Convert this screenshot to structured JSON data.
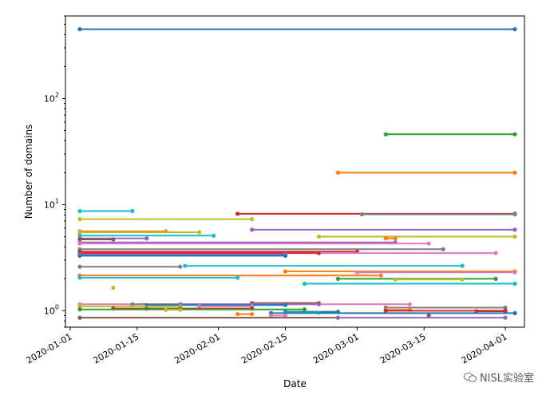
{
  "chart_data": {
    "type": "line",
    "xlabel": "Date",
    "ylabel": "Number of domains",
    "yscale": "log",
    "xlim": [
      "2019-12-31",
      "2020-04-05"
    ],
    "ylim": [
      0.7,
      600
    ],
    "x_ticks": [
      "2020-01-01",
      "2020-01-15",
      "2020-02-01",
      "2020-02-15",
      "2020-03-01",
      "2020-03-15",
      "2020-04-01"
    ],
    "y_ticks": [
      {
        "value": 1,
        "label": "10^0"
      },
      {
        "value": 10,
        "label": "10^1"
      },
      {
        "value": 100,
        "label": "10^2"
      }
    ],
    "grid": false,
    "series": [
      {
        "color": "#1f77b4",
        "points": [
          [
            "2020-01-03",
            450
          ],
          [
            "2020-04-03",
            450
          ]
        ]
      },
      {
        "color": "#2ca02c",
        "points": [
          [
            "2020-03-07",
            46
          ],
          [
            "2020-04-03",
            46
          ]
        ]
      },
      {
        "color": "#ff7f0e",
        "points": [
          [
            "2020-02-26",
            20
          ],
          [
            "2020-04-03",
            20
          ]
        ]
      },
      {
        "color": "#17becf",
        "points": [
          [
            "2020-01-03",
            8.7
          ],
          [
            "2020-01-14",
            8.7
          ]
        ]
      },
      {
        "color": "#d62728",
        "points": [
          [
            "2020-02-05",
            8.2
          ],
          [
            "2020-04-03",
            8.2
          ]
        ]
      },
      {
        "color": "#7f7f7f",
        "points": [
          [
            "2020-03-02",
            8.1
          ],
          [
            "2020-04-03",
            8.1
          ]
        ]
      },
      {
        "color": "#bcbd22",
        "points": [
          [
            "2020-01-03",
            7.3
          ],
          [
            "2020-02-08",
            7.3
          ]
        ]
      },
      {
        "color": "#9467bd",
        "points": [
          [
            "2020-02-08",
            5.8
          ],
          [
            "2020-04-03",
            5.8
          ]
        ]
      },
      {
        "color": "#ff7f0e",
        "points": [
          [
            "2020-01-03",
            5.6
          ],
          [
            "2020-01-21",
            5.6
          ]
        ]
      },
      {
        "color": "#bcbd22",
        "points": [
          [
            "2020-01-03",
            5.5
          ],
          [
            "2020-01-28",
            5.5
          ]
        ]
      },
      {
        "color": "#17becf",
        "points": [
          [
            "2020-01-03",
            5.1
          ],
          [
            "2020-01-31",
            5.1
          ]
        ]
      },
      {
        "color": "#bcbd22",
        "points": [
          [
            "2020-02-22",
            5.0
          ],
          [
            "2020-04-03",
            5.0
          ]
        ]
      },
      {
        "color": "#ff7f0e",
        "points": [
          [
            "2020-03-07",
            4.8
          ],
          [
            "2020-03-09",
            4.8
          ]
        ]
      },
      {
        "color": "#9467bd",
        "points": [
          [
            "2020-01-03",
            4.8
          ],
          [
            "2020-01-17",
            4.8
          ]
        ]
      },
      {
        "color": "#8c564b",
        "points": [
          [
            "2020-01-03",
            4.7
          ],
          [
            "2020-01-10",
            4.7
          ]
        ]
      },
      {
        "color": "#9467bd",
        "points": [
          [
            "2020-01-03",
            4.4
          ],
          [
            "2020-03-09",
            4.4
          ]
        ]
      },
      {
        "color": "#e377c2",
        "points": [
          [
            "2020-01-03",
            4.3
          ],
          [
            "2020-03-16",
            4.3
          ]
        ]
      },
      {
        "color": "#7f7f7f",
        "points": [
          [
            "2020-01-03",
            3.8
          ],
          [
            "2020-03-19",
            3.8
          ]
        ]
      },
      {
        "color": "#d62728",
        "points": [
          [
            "2020-01-03",
            3.6
          ],
          [
            "2020-03-01",
            3.6
          ]
        ]
      },
      {
        "color": "#e377c2",
        "points": [
          [
            "2020-01-03",
            3.5
          ],
          [
            "2020-03-30",
            3.5
          ]
        ]
      },
      {
        "color": "#d62728",
        "points": [
          [
            "2020-01-03",
            3.5
          ],
          [
            "2020-02-22",
            3.5
          ]
        ]
      },
      {
        "color": "#9467bd",
        "points": [
          [
            "2020-01-03",
            3.4
          ],
          [
            "2020-02-15",
            3.4
          ]
        ]
      },
      {
        "color": "#1f77b4",
        "points": [
          [
            "2020-01-03",
            3.3
          ],
          [
            "2020-02-15",
            3.3
          ]
        ]
      },
      {
        "color": "#17becf",
        "points": [
          [
            "2020-01-25",
            2.65
          ],
          [
            "2020-03-23",
            2.65
          ]
        ]
      },
      {
        "color": "#7f7f7f",
        "points": [
          [
            "2020-01-03",
            2.6
          ],
          [
            "2020-01-24",
            2.6
          ]
        ]
      },
      {
        "color": "#ff7f0e",
        "points": [
          [
            "2020-02-15",
            2.35
          ],
          [
            "2020-04-03",
            2.35
          ]
        ]
      },
      {
        "color": "#e377c2",
        "points": [
          [
            "2020-03-01",
            2.3
          ],
          [
            "2020-04-03",
            2.3
          ]
        ]
      },
      {
        "color": "#ff7f0e",
        "points": [
          [
            "2020-01-03",
            2.15
          ],
          [
            "2020-03-06",
            2.15
          ]
        ]
      },
      {
        "color": "#17becf",
        "points": [
          [
            "2020-01-03",
            2.05
          ],
          [
            "2020-02-05",
            2.05
          ]
        ]
      },
      {
        "color": "#2ca02c",
        "points": [
          [
            "2020-02-26",
            2.0
          ],
          [
            "2020-03-30",
            2.0
          ]
        ]
      },
      {
        "color": "#bcbd22",
        "points": [
          [
            "2020-03-09",
            1.97
          ],
          [
            "2020-03-23",
            1.97
          ]
        ]
      },
      {
        "color": "#17becf",
        "points": [
          [
            "2020-02-19",
            1.8
          ],
          [
            "2020-04-03",
            1.8
          ]
        ]
      },
      {
        "color": "#bcbd22",
        "points": [
          [
            "2020-01-10",
            1.65
          ]
        ]
      },
      {
        "color": "#8c564b",
        "points": [
          [
            "2020-02-08",
            1.18
          ],
          [
            "2020-02-22",
            1.18
          ]
        ]
      },
      {
        "color": "#e377c2",
        "points": [
          [
            "2020-01-03",
            1.15
          ],
          [
            "2020-03-12",
            1.15
          ]
        ]
      },
      {
        "color": "#7f7f7f",
        "points": [
          [
            "2020-01-14",
            1.15
          ],
          [
            "2020-01-24",
            1.15
          ]
        ]
      },
      {
        "color": "#9467bd",
        "points": [
          [
            "2020-01-24",
            1.15
          ],
          [
            "2020-02-22",
            1.15
          ]
        ]
      },
      {
        "color": "#1f77b4",
        "points": [
          [
            "2020-01-17",
            1.13
          ],
          [
            "2020-02-15",
            1.13
          ]
        ]
      },
      {
        "color": "#bcbd22",
        "points": [
          [
            "2020-01-03",
            1.1
          ],
          [
            "2020-01-24",
            1.1
          ]
        ]
      },
      {
        "color": "#e377c2",
        "points": [
          [
            "2020-01-28",
            1.1
          ],
          [
            "2020-02-08",
            1.1
          ]
        ]
      },
      {
        "color": "#7f7f7f",
        "points": [
          [
            "2020-03-07",
            1.07
          ],
          [
            "2020-04-01",
            1.07
          ]
        ]
      },
      {
        "color": "#d62728",
        "points": [
          [
            "2020-01-10",
            1.05
          ],
          [
            "2020-02-08",
            1.05
          ]
        ]
      },
      {
        "color": "#8c564b",
        "points": [
          [
            "2020-01-17",
            1.05
          ],
          [
            "2020-01-24",
            1.05
          ]
        ]
      },
      {
        "color": "#2ca02c",
        "points": [
          [
            "2020-01-03",
            1.03
          ],
          [
            "2020-02-19",
            1.03
          ]
        ]
      },
      {
        "color": "#ff7f0e",
        "points": [
          [
            "2020-03-07",
            1.02
          ],
          [
            "2020-03-12",
            1.02
          ]
        ]
      },
      {
        "color": "#bcbd22",
        "points": [
          [
            "2020-01-21",
            1.02
          ],
          [
            "2020-01-24",
            1.02
          ]
        ]
      },
      {
        "color": "#d62728",
        "points": [
          [
            "2020-03-07",
            1.0
          ],
          [
            "2020-04-01",
            1.0
          ]
        ]
      },
      {
        "color": "#d62728",
        "points": [
          [
            "2020-03-26",
            0.99
          ],
          [
            "2020-04-01",
            0.99
          ]
        ]
      },
      {
        "color": "#2ca02c",
        "points": [
          [
            "2020-02-15",
            0.98
          ],
          [
            "2020-02-26",
            0.98
          ]
        ]
      },
      {
        "color": "#1f77b4",
        "points": [
          [
            "2020-02-15",
            0.97
          ],
          [
            "2020-02-26",
            0.97
          ]
        ]
      },
      {
        "color": "#17becf",
        "points": [
          [
            "2020-02-15",
            0.96
          ],
          [
            "2020-02-22",
            0.96
          ]
        ]
      },
      {
        "color": "#1f77b4",
        "points": [
          [
            "2020-02-12",
            0.95
          ],
          [
            "2020-04-03",
            0.95
          ]
        ]
      },
      {
        "color": "#ff7f0e",
        "points": [
          [
            "2020-02-05",
            0.93
          ],
          [
            "2020-02-08",
            0.93
          ]
        ]
      },
      {
        "color": "#e377c2",
        "points": [
          [
            "2020-02-12",
            0.9
          ],
          [
            "2020-02-15",
            0.9
          ]
        ]
      },
      {
        "color": "#8c564b",
        "points": [
          [
            "2020-03-16",
            0.9
          ]
        ]
      },
      {
        "color": "#8c564b",
        "points": [
          [
            "2020-01-03",
            0.86
          ],
          [
            "2020-02-26",
            0.86
          ]
        ]
      },
      {
        "color": "#9467bd",
        "points": [
          [
            "2020-02-26",
            0.86
          ],
          [
            "2020-04-01",
            0.86
          ]
        ]
      }
    ]
  },
  "watermark": {
    "text": "NISL实验室",
    "icon": "wechat-icon"
  }
}
